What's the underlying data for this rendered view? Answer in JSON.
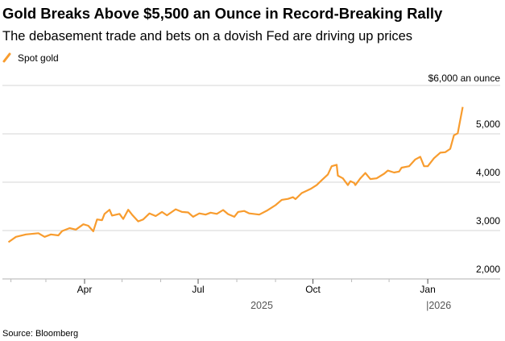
{
  "colors": {
    "series": "#F89C2E",
    "grid": "#d4d4d4",
    "axis": "#cccccc"
  },
  "chart_data": {
    "type": "line",
    "title": "Gold Breaks Above $5,500 an Ounce in Record-Breaking Rally",
    "subtitle": "The debasement trade and bets on a dovish Fed are driving up prices",
    "legend": [
      {
        "label": "Spot gold",
        "icon": "slash-line-icon"
      }
    ],
    "legend_placement": "top-left",
    "ylabel": "$6,000 an ounce",
    "ylim": [
      2000,
      6000
    ],
    "yticks": [
      {
        "value": 2000,
        "label": "2,000"
      },
      {
        "value": 3000,
        "label": "3,000"
      },
      {
        "value": 4000,
        "label": "4,000"
      },
      {
        "value": 5000,
        "label": "5,000"
      }
    ],
    "x_unit": "days since 2025-01-01",
    "xlim": [
      26,
      396
    ],
    "xticks_minor": [
      31,
      59,
      90,
      120,
      151,
      181,
      212,
      243,
      273,
      304,
      334,
      365
    ],
    "xticks": [
      {
        "value": 90,
        "label": "Apr"
      },
      {
        "value": 181,
        "label": "Jul"
      },
      {
        "value": 273,
        "label": "Oct"
      },
      {
        "value": 365,
        "label": "Jan"
      }
    ],
    "year_labels": [
      {
        "value": 232,
        "label": "2025"
      },
      {
        "value": 365,
        "label": "|2026"
      }
    ],
    "grid": true,
    "series": [
      {
        "name": "Spot gold",
        "x": [
          29,
          35,
          43,
          53,
          58,
          63,
          69,
          72,
          78,
          83,
          89,
          93,
          97,
          100,
          104,
          106,
          110,
          112,
          118,
          121,
          125,
          128,
          133,
          137,
          142,
          147,
          152,
          156,
          163,
          168,
          173,
          177,
          182,
          187,
          191,
          196,
          201,
          205,
          210,
          213,
          218,
          222,
          230,
          236,
          243,
          248,
          253,
          257,
          259,
          264,
          271,
          276,
          280,
          285,
          288,
          292,
          293,
          297,
          301,
          303,
          306,
          307,
          311,
          315,
          319,
          324,
          330,
          333,
          338,
          342,
          344,
          350,
          355,
          359,
          362,
          365,
          370,
          375,
          379,
          383,
          386,
          389,
          393
        ],
        "values": [
          2760,
          2870,
          2920,
          2945,
          2870,
          2920,
          2900,
          2990,
          3050,
          3020,
          3130,
          3100,
          2985,
          3230,
          3215,
          3345,
          3430,
          3310,
          3345,
          3240,
          3430,
          3330,
          3190,
          3230,
          3355,
          3300,
          3385,
          3315,
          3440,
          3385,
          3375,
          3285,
          3355,
          3330,
          3370,
          3345,
          3425,
          3340,
          3285,
          3385,
          3405,
          3355,
          3330,
          3410,
          3525,
          3635,
          3655,
          3690,
          3650,
          3775,
          3860,
          3940,
          4040,
          4160,
          4330,
          4360,
          4135,
          4080,
          3940,
          4020,
          3985,
          3940,
          4080,
          4190,
          4065,
          4080,
          4175,
          4240,
          4200,
          4220,
          4300,
          4330,
          4470,
          4525,
          4330,
          4330,
          4495,
          4610,
          4620,
          4690,
          4970,
          5010,
          5555
        ]
      }
    ],
    "source": "Source: Bloomberg"
  }
}
